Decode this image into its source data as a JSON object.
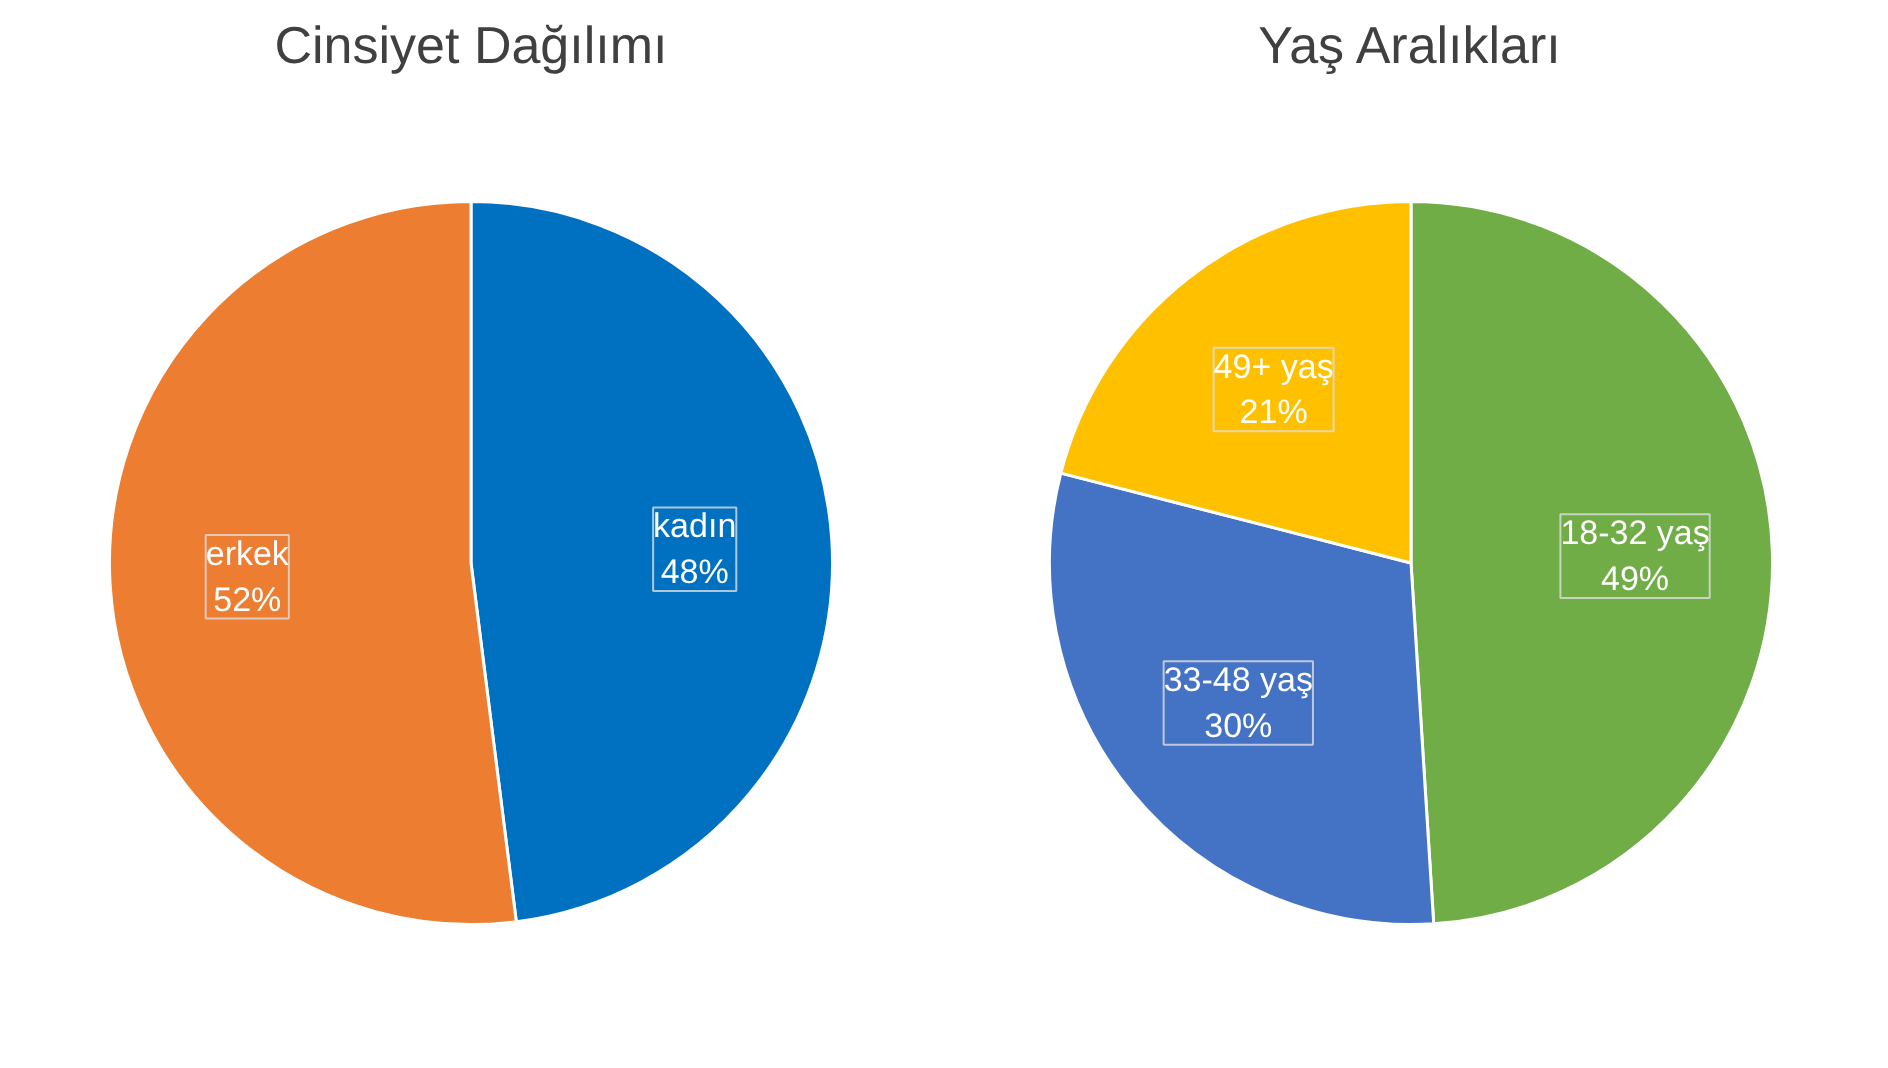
{
  "chart_data": [
    {
      "type": "pie",
      "title": "Cinsiyet Dağılımı",
      "categories": [
        "kadın",
        "erkek"
      ],
      "values": [
        48,
        52
      ],
      "colors": [
        "#0070c0",
        "#ed7d31"
      ],
      "value_labels": [
        "48%",
        "52%"
      ]
    },
    {
      "type": "pie",
      "title": "Yaş Aralıkları",
      "categories": [
        "18-32 yaş",
        "33-48 yaş",
        "49+ yaş"
      ],
      "values": [
        49,
        30,
        21
      ],
      "colors": [
        "#70ad47",
        "#4472c4",
        "#ffc000"
      ],
      "value_labels": [
        "49%",
        "30%",
        "21%"
      ]
    }
  ]
}
